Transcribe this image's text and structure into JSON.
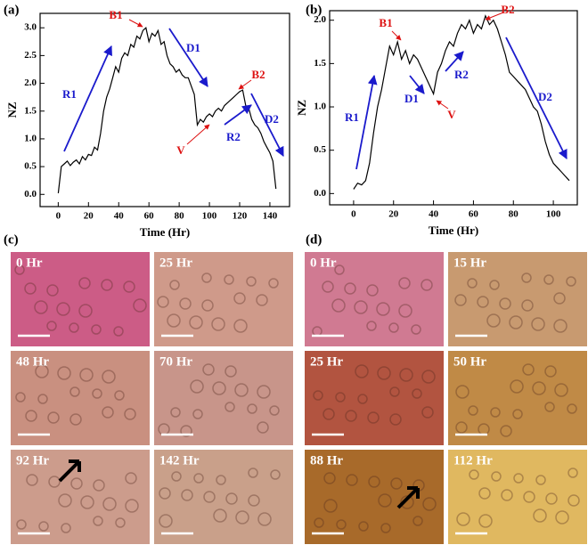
{
  "chart_data": [
    {
      "type": "line",
      "panel_label": "(a)",
      "x_label": "Time (Hr)",
      "y_label": "NZ",
      "xlim": [
        -12,
        153
      ],
      "ylim": [
        -0.22,
        3.26
      ],
      "xticks": [
        0,
        20,
        40,
        60,
        80,
        100,
        120,
        140
      ],
      "yticks": [
        {
          "value": 0,
          "label": "0.0"
        },
        0.5,
        {
          "value": 1,
          "label": "1.0"
        },
        1.5,
        {
          "value": 2,
          "label": "2.0"
        },
        2.5,
        {
          "value": 3,
          "label": "3.0"
        }
      ],
      "annotations": [
        {
          "text": "R1",
          "color": "#1a1acc"
        },
        {
          "text": "B1",
          "color": "#dd1111"
        },
        {
          "text": "D1",
          "color": "#1a1acc"
        },
        {
          "text": "V",
          "color": "#dd1111"
        },
        {
          "text": "B2",
          "color": "#dd1111"
        },
        {
          "text": "R2",
          "color": "#1a1acc"
        },
        {
          "text": "D2",
          "color": "#1a1acc"
        }
      ],
      "series": [
        {
          "color": "#000000",
          "x": [
            0,
            2,
            4,
            6,
            8,
            10,
            12,
            14,
            16,
            18,
            20,
            22,
            24,
            26,
            28,
            30,
            32,
            34,
            36,
            38,
            40,
            42,
            44,
            46,
            48,
            50,
            52,
            54,
            56,
            58,
            60,
            62,
            64,
            66,
            68,
            70,
            72,
            74,
            76,
            78,
            80,
            82,
            84,
            86,
            88,
            90,
            92,
            94,
            96,
            98,
            100,
            102,
            104,
            106,
            108,
            110,
            112,
            114,
            116,
            118,
            120,
            122,
            124,
            126,
            128,
            130,
            132,
            134,
            136,
            138,
            140,
            142,
            144
          ],
          "values": [
            0.02,
            0.5,
            0.55,
            0.6,
            0.52,
            0.58,
            0.62,
            0.55,
            0.68,
            0.62,
            0.72,
            0.7,
            0.85,
            0.8,
            1.1,
            1.5,
            1.75,
            1.9,
            2.1,
            2.3,
            2.2,
            2.45,
            2.55,
            2.5,
            2.7,
            2.65,
            2.85,
            2.8,
            2.95,
            3.0,
            2.75,
            2.9,
            2.85,
            2.95,
            2.7,
            2.75,
            2.5,
            2.35,
            2.3,
            2.2,
            2.25,
            2.15,
            2.1,
            2.1,
            1.95,
            1.8,
            1.25,
            1.35,
            1.3,
            1.4,
            1.45,
            1.4,
            1.5,
            1.55,
            1.5,
            1.6,
            1.65,
            1.7,
            1.75,
            1.8,
            1.85,
            1.88,
            1.6,
            1.55,
            1.35,
            1.25,
            1.2,
            1.1,
            0.95,
            0.85,
            0.75,
            0.6,
            0.1
          ]
        }
      ]
    },
    {
      "type": "line",
      "panel_label": "(b)",
      "x_label": "Time (Hr)",
      "y_label": "NZ",
      "xlim": [
        -12,
        112
      ],
      "ylim": [
        -0.13,
        2.11
      ],
      "xticks": [
        0,
        20,
        40,
        60,
        80,
        100
      ],
      "yticks": [
        {
          "value": 0,
          "label": "0.0"
        },
        0.5,
        {
          "value": 1,
          "label": "1.0"
        },
        1.5,
        {
          "value": 2,
          "label": "2.0"
        }
      ],
      "annotations": [
        {
          "text": "R1",
          "color": "#1a1acc"
        },
        {
          "text": "B1",
          "color": "#dd1111"
        },
        {
          "text": "D1",
          "color": "#1a1acc"
        },
        {
          "text": "V",
          "color": "#dd1111"
        },
        {
          "text": "R2",
          "color": "#1a1acc"
        },
        {
          "text": "B2",
          "color": "#dd1111"
        },
        {
          "text": "D2",
          "color": "#1a1acc"
        }
      ],
      "series": [
        {
          "color": "#000000",
          "x": [
            0,
            2,
            4,
            6,
            8,
            10,
            12,
            14,
            16,
            18,
            20,
            22,
            24,
            26,
            28,
            30,
            32,
            34,
            36,
            38,
            40,
            42,
            44,
            46,
            48,
            50,
            52,
            54,
            56,
            58,
            60,
            62,
            64,
            66,
            68,
            70,
            72,
            74,
            76,
            78,
            80,
            82,
            84,
            86,
            88,
            90,
            92,
            94,
            96,
            98,
            100,
            102,
            104,
            106,
            108
          ],
          "values": [
            0.05,
            0.12,
            0.1,
            0.15,
            0.35,
            0.7,
            1.0,
            1.2,
            1.45,
            1.7,
            1.6,
            1.75,
            1.55,
            1.65,
            1.5,
            1.6,
            1.55,
            1.45,
            1.35,
            1.25,
            1.15,
            1.4,
            1.5,
            1.65,
            1.75,
            1.7,
            1.85,
            1.95,
            1.9,
            2.0,
            1.85,
            1.95,
            1.9,
            2.05,
            1.95,
            2.0,
            1.9,
            1.75,
            1.6,
            1.4,
            1.35,
            1.3,
            1.25,
            1.2,
            1.1,
            1.0,
            0.95,
            0.8,
            0.6,
            0.45,
            0.35,
            0.3,
            0.25,
            0.2,
            0.15
          ]
        }
      ]
    }
  ],
  "image_panels": [
    {
      "panel_label": "(c)",
      "images": [
        "0 Hr",
        "25 Hr",
        "48 Hr",
        "70 Hr",
        "92 Hr",
        "142 Hr"
      ]
    },
    {
      "panel_label": "(d)",
      "images": [
        "0 Hr",
        "15 Hr",
        "25 Hr",
        "50 Hr",
        "88 Hr",
        "112 Hr"
      ]
    }
  ]
}
